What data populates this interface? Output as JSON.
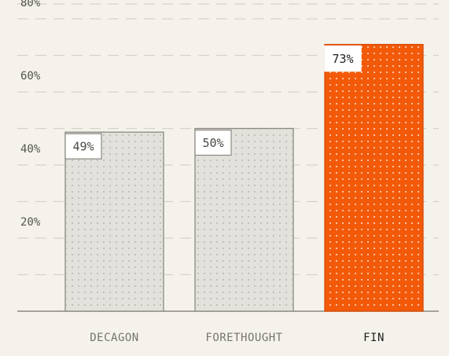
{
  "colors": {
    "background": "#f4f2eb",
    "bar_default": "#e3e1dc",
    "bar_default_stroke": "#8a8880",
    "bar_highlight": "#f25a0a",
    "bar_highlight_stroke": "#d84a05",
    "dot_default": "#a9a7a1",
    "dot_highlight": "#ffe1cc"
  },
  "chart_data": {
    "type": "bar",
    "title": "",
    "xlabel": "",
    "ylabel": "",
    "categories": [
      "DECAGON",
      "FORETHOUGHT",
      "FIN"
    ],
    "values": [
      49,
      50,
      73
    ],
    "value_labels": [
      "49%",
      "50%",
      "73%"
    ],
    "highlight": "FIN",
    "ylim": [
      0,
      80
    ],
    "yticks": [
      20,
      40,
      60,
      80
    ],
    "ytick_labels": [
      "20%",
      "40%",
      "60%",
      "80%"
    ],
    "grid": true,
    "legend": "none"
  }
}
